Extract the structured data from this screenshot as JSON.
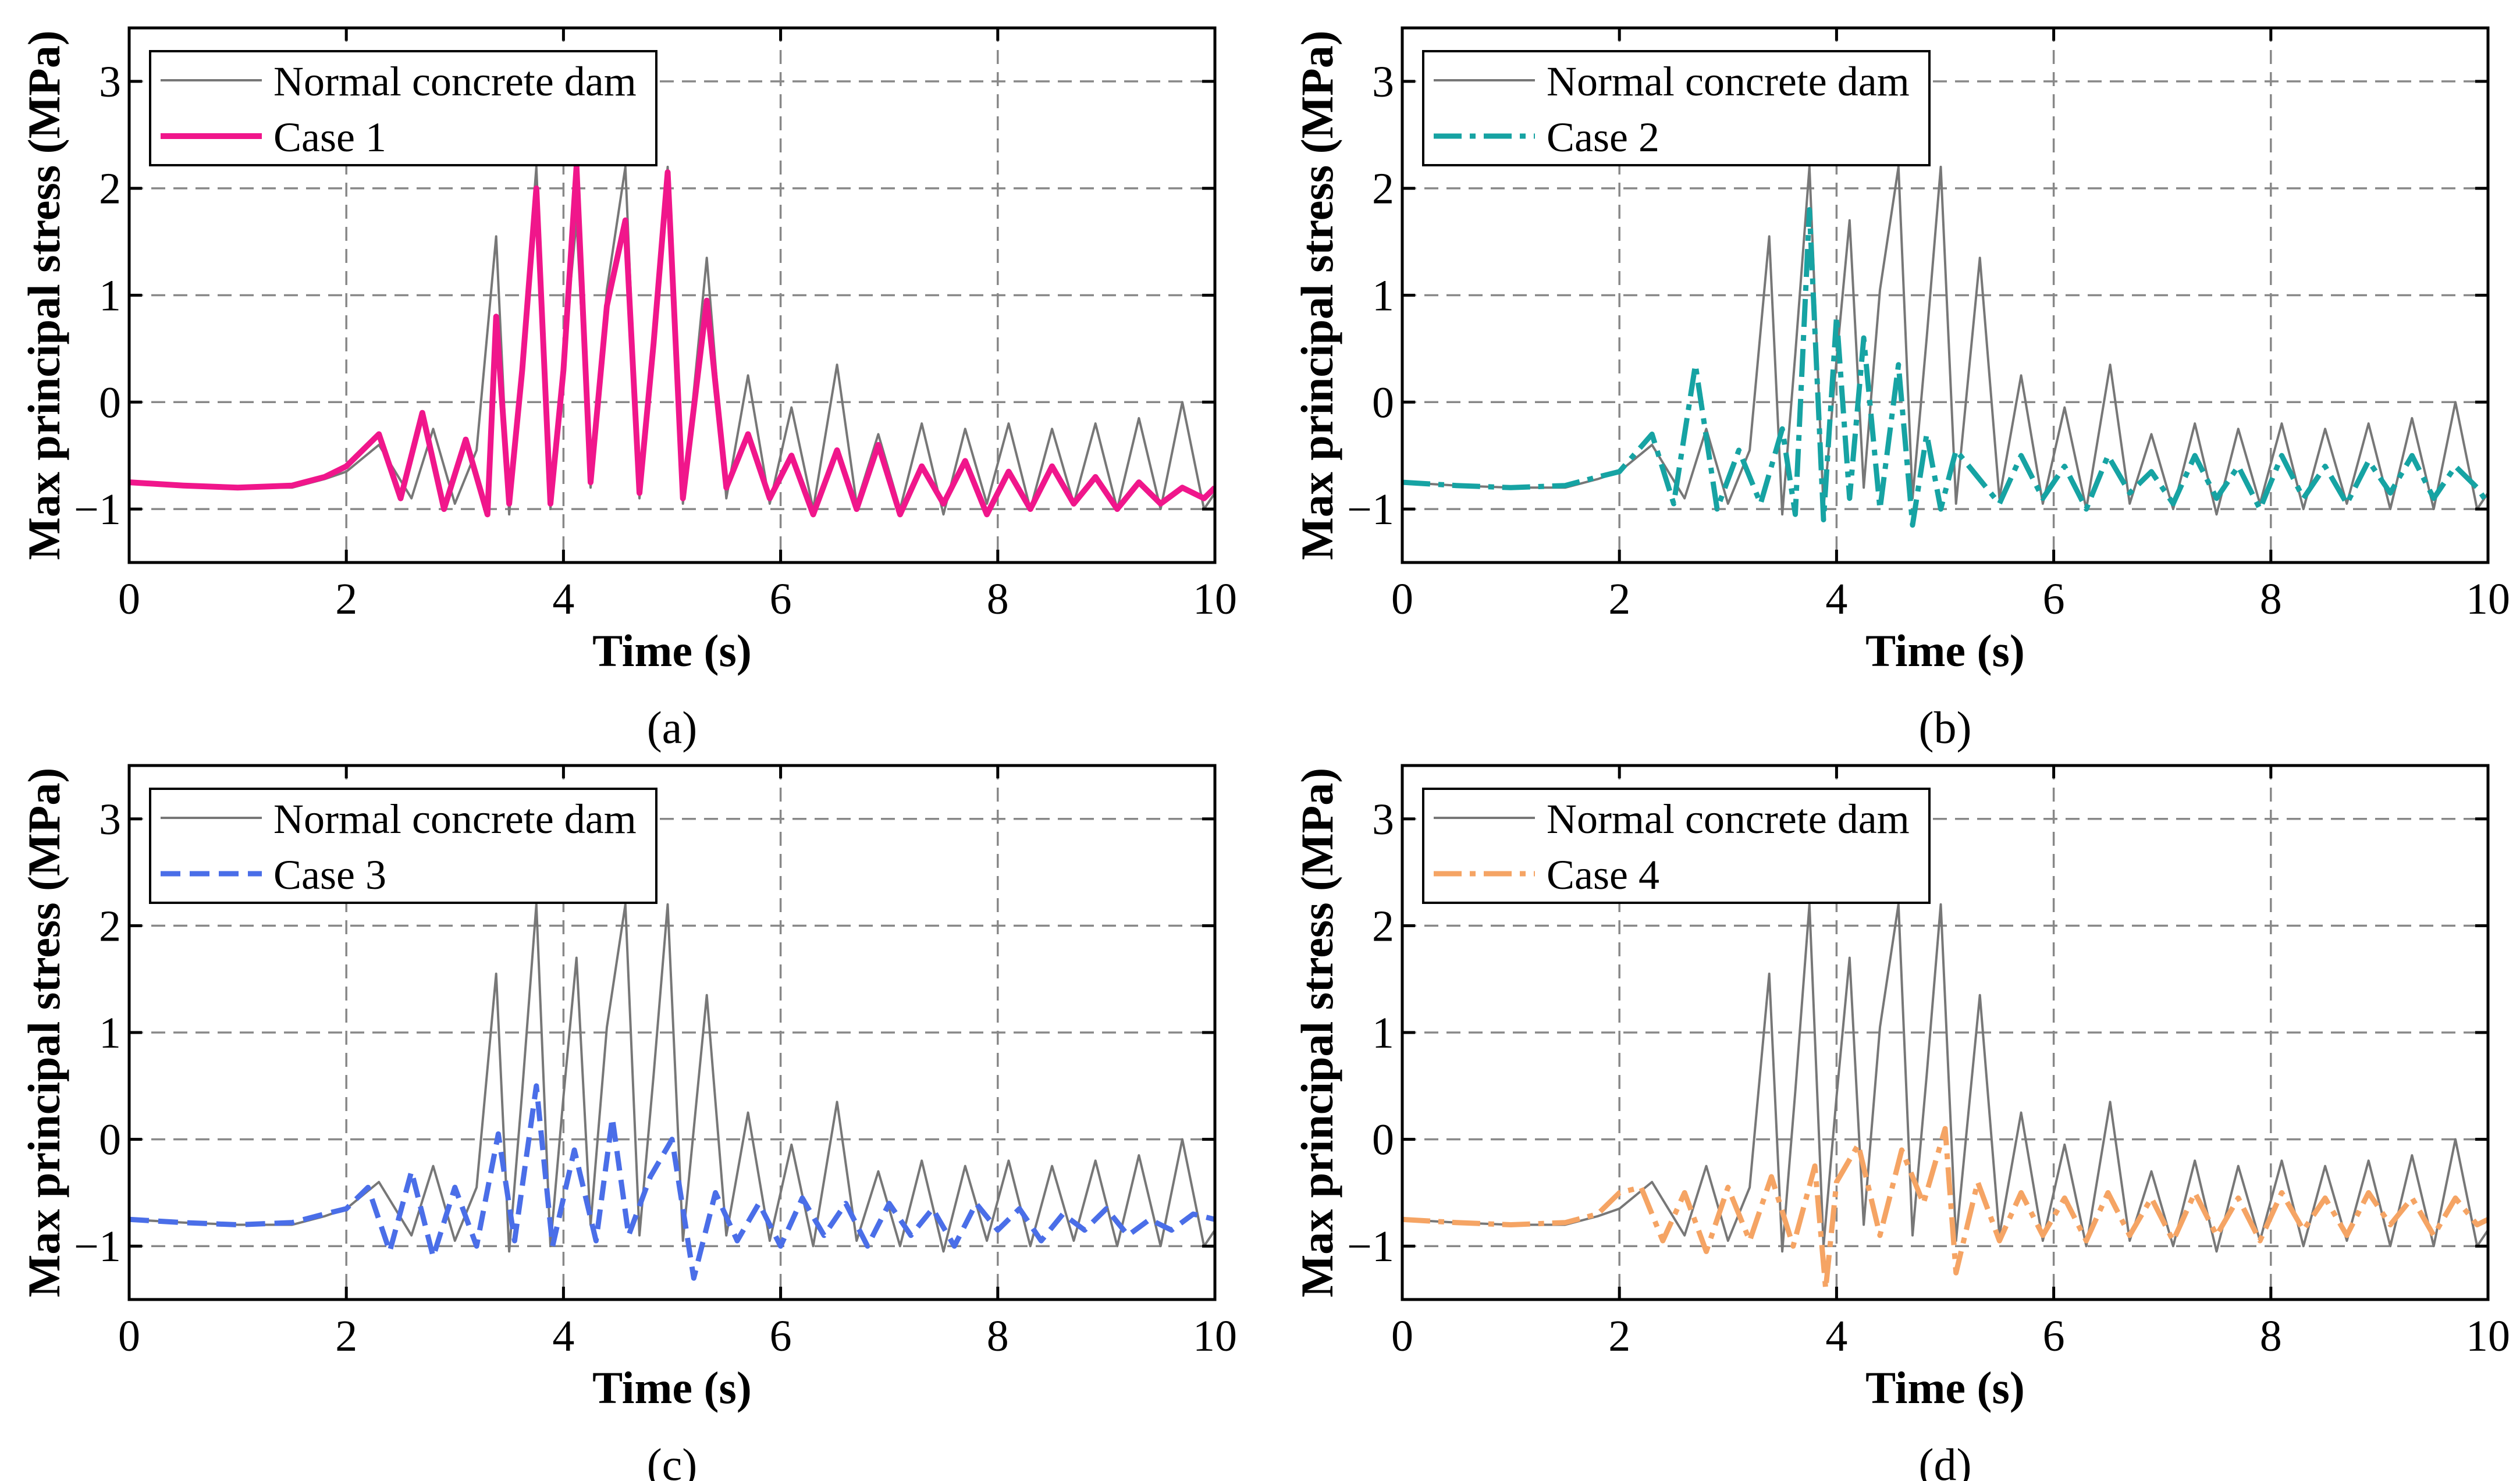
{
  "figure": {
    "panels": [
      "a",
      "b",
      "c",
      "d"
    ]
  },
  "chart_data": [
    {
      "type": "line",
      "panel_label": "(a)",
      "xlabel": "Time (s)",
      "ylabel": "Max principal stress (MPa)",
      "xlim": [
        0,
        10
      ],
      "ylim": [
        -1.5,
        3.5
      ],
      "xticks": [
        "0",
        "2",
        "4",
        "6",
        "8",
        "10"
      ],
      "yticks": [
        "-1",
        "0",
        "1",
        "2",
        "3"
      ],
      "grid": true,
      "legend_position": "top-left",
      "series": [
        {
          "name": "Normal concrete dam",
          "color": "#777777",
          "style": "solid-thin",
          "x": [
            0,
            0.5,
            1.0,
            1.5,
            1.8,
            2.0,
            2.3,
            2.6,
            2.8,
            3.0,
            3.2,
            3.38,
            3.5,
            3.62,
            3.75,
            3.88,
            4.0,
            4.12,
            4.25,
            4.4,
            4.57,
            4.7,
            4.83,
            4.96,
            5.1,
            5.32,
            5.5,
            5.7,
            5.9,
            6.1,
            6.3,
            6.52,
            6.7,
            6.9,
            7.1,
            7.3,
            7.5,
            7.7,
            7.9,
            8.1,
            8.3,
            8.5,
            8.7,
            8.9,
            9.1,
            9.3,
            9.5,
            9.7,
            9.9,
            10.0
          ],
          "y": [
            -0.75,
            -0.78,
            -0.8,
            -0.8,
            -0.72,
            -0.65,
            -0.4,
            -0.9,
            -0.25,
            -0.95,
            -0.45,
            1.55,
            -1.05,
            0.45,
            2.2,
            -1.0,
            0.4,
            1.7,
            -0.8,
            1.05,
            2.2,
            -0.9,
            0.6,
            2.2,
            -0.95,
            1.35,
            -0.9,
            0.25,
            -0.95,
            -0.05,
            -1.0,
            0.35,
            -0.95,
            -0.3,
            -1.0,
            -0.2,
            -1.05,
            -0.25,
            -0.95,
            -0.2,
            -1.0,
            -0.25,
            -0.95,
            -0.2,
            -1.0,
            -0.15,
            -1.0,
            0.0,
            -1.0,
            -0.85
          ]
        },
        {
          "name": "Case 1",
          "color": "#f0168b",
          "style": "solid-thick",
          "x": [
            0,
            0.5,
            1.0,
            1.5,
            1.8,
            2.0,
            2.3,
            2.5,
            2.7,
            2.9,
            3.1,
            3.3,
            3.38,
            3.5,
            3.62,
            3.75,
            3.88,
            4.0,
            4.12,
            4.25,
            4.4,
            4.57,
            4.7,
            4.83,
            4.96,
            5.1,
            5.32,
            5.5,
            5.7,
            5.9,
            6.1,
            6.3,
            6.52,
            6.7,
            6.9,
            7.1,
            7.3,
            7.5,
            7.7,
            7.9,
            8.1,
            8.3,
            8.5,
            8.7,
            8.9,
            9.1,
            9.3,
            9.5,
            9.7,
            9.9,
            10.0
          ],
          "y": [
            -0.75,
            -0.78,
            -0.8,
            -0.78,
            -0.7,
            -0.6,
            -0.3,
            -0.9,
            -0.1,
            -1.0,
            -0.35,
            -1.05,
            0.8,
            -0.95,
            0.3,
            2.0,
            -0.95,
            0.3,
            2.2,
            -0.75,
            0.9,
            1.7,
            -0.85,
            0.55,
            2.15,
            -0.9,
            0.95,
            -0.8,
            -0.3,
            -0.9,
            -0.5,
            -1.05,
            -0.45,
            -1.0,
            -0.4,
            -1.05,
            -0.6,
            -0.95,
            -0.55,
            -1.05,
            -0.65,
            -1.0,
            -0.6,
            -0.95,
            -0.7,
            -1.0,
            -0.75,
            -0.95,
            -0.8,
            -0.9,
            -0.8
          ]
        }
      ]
    },
    {
      "type": "line",
      "panel_label": "(b)",
      "xlabel": "Time (s)",
      "ylabel": "Max principal stress (MPa)",
      "xlim": [
        0,
        10
      ],
      "ylim": [
        -1.5,
        3.5
      ],
      "xticks": [
        "0",
        "2",
        "4",
        "6",
        "8",
        "10"
      ],
      "yticks": [
        "-1",
        "0",
        "1",
        "2",
        "3"
      ],
      "grid": true,
      "legend_position": "top-left",
      "series": [
        {
          "name": "Normal concrete dam",
          "color": "#777777",
          "style": "solid-thin",
          "x": [
            0,
            0.5,
            1.0,
            1.5,
            1.8,
            2.0,
            2.3,
            2.6,
            2.8,
            3.0,
            3.2,
            3.38,
            3.5,
            3.62,
            3.75,
            3.88,
            4.0,
            4.12,
            4.25,
            4.4,
            4.57,
            4.7,
            4.83,
            4.96,
            5.1,
            5.32,
            5.5,
            5.7,
            5.9,
            6.1,
            6.3,
            6.52,
            6.7,
            6.9,
            7.1,
            7.3,
            7.5,
            7.7,
            7.9,
            8.1,
            8.3,
            8.5,
            8.7,
            8.9,
            9.1,
            9.3,
            9.5,
            9.7,
            9.9,
            10.0
          ],
          "y": [
            -0.75,
            -0.78,
            -0.8,
            -0.8,
            -0.72,
            -0.65,
            -0.4,
            -0.9,
            -0.25,
            -0.95,
            -0.45,
            1.55,
            -1.05,
            0.45,
            2.2,
            -1.0,
            0.4,
            1.7,
            -0.8,
            1.05,
            2.2,
            -0.9,
            0.6,
            2.2,
            -0.95,
            1.35,
            -0.9,
            0.25,
            -0.95,
            -0.05,
            -1.0,
            0.35,
            -0.95,
            -0.3,
            -1.0,
            -0.2,
            -1.05,
            -0.25,
            -0.95,
            -0.2,
            -1.0,
            -0.25,
            -0.95,
            -0.2,
            -1.0,
            -0.15,
            -1.0,
            0.0,
            -1.0,
            -0.85
          ]
        },
        {
          "name": "Case 2",
          "color": "#16a3a3",
          "style": "dash-dot",
          "x": [
            0,
            0.5,
            1.0,
            1.5,
            1.8,
            2.0,
            2.3,
            2.5,
            2.7,
            2.9,
            3.1,
            3.3,
            3.5,
            3.62,
            3.75,
            3.88,
            4.0,
            4.12,
            4.25,
            4.4,
            4.57,
            4.7,
            4.83,
            4.96,
            5.1,
            5.3,
            5.5,
            5.7,
            5.9,
            6.1,
            6.3,
            6.5,
            6.7,
            6.9,
            7.1,
            7.3,
            7.5,
            7.7,
            7.9,
            8.1,
            8.3,
            8.5,
            8.7,
            8.9,
            9.1,
            9.3,
            9.5,
            9.7,
            9.9,
            10.0
          ],
          "y": [
            -0.75,
            -0.78,
            -0.8,
            -0.78,
            -0.7,
            -0.65,
            -0.3,
            -0.95,
            0.35,
            -1.0,
            -0.45,
            -0.95,
            -0.25,
            -1.05,
            1.8,
            -1.1,
            0.8,
            -0.9,
            0.6,
            -1.0,
            0.35,
            -1.15,
            -0.3,
            -1.0,
            -0.45,
            -0.7,
            -0.95,
            -0.5,
            -0.9,
            -0.6,
            -1.0,
            -0.5,
            -0.85,
            -0.65,
            -0.95,
            -0.5,
            -0.9,
            -0.6,
            -1.0,
            -0.5,
            -0.9,
            -0.6,
            -0.95,
            -0.55,
            -0.85,
            -0.5,
            -0.9,
            -0.6,
            -0.8,
            -0.95
          ]
        }
      ]
    },
    {
      "type": "line",
      "panel_label": "(c)",
      "xlabel": "Time (s)",
      "ylabel": "Max principal stress (MPa)",
      "xlim": [
        0,
        10
      ],
      "ylim": [
        -1.5,
        3.5
      ],
      "xticks": [
        "0",
        "2",
        "4",
        "6",
        "8",
        "10"
      ],
      "yticks": [
        "-1",
        "0",
        "1",
        "2",
        "3"
      ],
      "grid": true,
      "legend_position": "top-left",
      "series": [
        {
          "name": "Normal concrete dam",
          "color": "#777777",
          "style": "solid-thin",
          "x": [
            0,
            0.5,
            1.0,
            1.5,
            1.8,
            2.0,
            2.3,
            2.6,
            2.8,
            3.0,
            3.2,
            3.38,
            3.5,
            3.62,
            3.75,
            3.88,
            4.0,
            4.12,
            4.25,
            4.4,
            4.57,
            4.7,
            4.83,
            4.96,
            5.1,
            5.32,
            5.5,
            5.7,
            5.9,
            6.1,
            6.3,
            6.52,
            6.7,
            6.9,
            7.1,
            7.3,
            7.5,
            7.7,
            7.9,
            8.1,
            8.3,
            8.5,
            8.7,
            8.9,
            9.1,
            9.3,
            9.5,
            9.7,
            9.9,
            10.0
          ],
          "y": [
            -0.75,
            -0.78,
            -0.8,
            -0.8,
            -0.72,
            -0.65,
            -0.4,
            -0.9,
            -0.25,
            -0.95,
            -0.45,
            1.55,
            -1.05,
            0.45,
            2.2,
            -1.0,
            0.4,
            1.7,
            -0.8,
            1.05,
            2.2,
            -0.9,
            0.6,
            2.2,
            -0.95,
            1.35,
            -0.9,
            0.25,
            -0.95,
            -0.05,
            -1.0,
            0.35,
            -0.95,
            -0.3,
            -1.0,
            -0.2,
            -1.05,
            -0.25,
            -0.95,
            -0.2,
            -1.0,
            -0.25,
            -0.95,
            -0.2,
            -1.0,
            -0.15,
            -1.0,
            0.0,
            -1.0,
            -0.85
          ]
        },
        {
          "name": "Case 3",
          "color": "#4a6ee8",
          "style": "dashed",
          "x": [
            0,
            0.5,
            1.0,
            1.5,
            1.8,
            2.0,
            2.2,
            2.4,
            2.6,
            2.8,
            3.0,
            3.2,
            3.4,
            3.55,
            3.75,
            3.9,
            4.1,
            4.3,
            4.45,
            4.6,
            4.8,
            5.0,
            5.2,
            5.4,
            5.6,
            5.8,
            6.0,
            6.2,
            6.4,
            6.6,
            6.8,
            7.0,
            7.2,
            7.4,
            7.6,
            7.8,
            8.0,
            8.2,
            8.4,
            8.6,
            8.8,
            9.0,
            9.2,
            9.4,
            9.6,
            9.8,
            10.0
          ],
          "y": [
            -0.75,
            -0.78,
            -0.8,
            -0.78,
            -0.7,
            -0.65,
            -0.45,
            -1.05,
            -0.3,
            -1.1,
            -0.45,
            -1.0,
            0.05,
            -0.95,
            0.5,
            -1.0,
            -0.1,
            -0.95,
            0.2,
            -0.9,
            -0.35,
            0.0,
            -1.3,
            -0.5,
            -0.95,
            -0.6,
            -1.0,
            -0.55,
            -0.9,
            -0.6,
            -1.0,
            -0.6,
            -0.9,
            -0.65,
            -1.0,
            -0.6,
            -0.85,
            -0.65,
            -0.95,
            -0.7,
            -0.85,
            -0.65,
            -0.9,
            -0.75,
            -0.85,
            -0.7,
            -0.75
          ]
        }
      ]
    },
    {
      "type": "line",
      "panel_label": "(d)",
      "xlabel": "Time (s)",
      "ylabel": "Max principal stress (MPa)",
      "xlim": [
        0,
        10
      ],
      "ylim": [
        -1.5,
        3.5
      ],
      "xticks": [
        "0",
        "2",
        "4",
        "6",
        "8",
        "10"
      ],
      "yticks": [
        "-1",
        "0",
        "1",
        "2",
        "3"
      ],
      "grid": true,
      "legend_position": "top-left",
      "series": [
        {
          "name": "Normal concrete dam",
          "color": "#777777",
          "style": "solid-thin",
          "x": [
            0,
            0.5,
            1.0,
            1.5,
            1.8,
            2.0,
            2.3,
            2.6,
            2.8,
            3.0,
            3.2,
            3.38,
            3.5,
            3.62,
            3.75,
            3.88,
            4.0,
            4.12,
            4.25,
            4.4,
            4.57,
            4.7,
            4.83,
            4.96,
            5.1,
            5.32,
            5.5,
            5.7,
            5.9,
            6.1,
            6.3,
            6.52,
            6.7,
            6.9,
            7.1,
            7.3,
            7.5,
            7.7,
            7.9,
            8.1,
            8.3,
            8.5,
            8.7,
            8.9,
            9.1,
            9.3,
            9.5,
            9.7,
            9.9,
            10.0
          ],
          "y": [
            -0.75,
            -0.78,
            -0.8,
            -0.8,
            -0.72,
            -0.65,
            -0.4,
            -0.9,
            -0.25,
            -0.95,
            -0.45,
            1.55,
            -1.05,
            0.45,
            2.2,
            -1.0,
            0.4,
            1.7,
            -0.8,
            1.05,
            2.2,
            -0.9,
            0.6,
            2.2,
            -0.95,
            1.35,
            -0.9,
            0.25,
            -0.95,
            -0.05,
            -1.0,
            0.35,
            -0.95,
            -0.3,
            -1.0,
            -0.2,
            -1.05,
            -0.25,
            -0.95,
            -0.2,
            -1.0,
            -0.25,
            -0.95,
            -0.2,
            -1.0,
            -0.15,
            -1.0,
            0.0,
            -1.0,
            -0.85
          ]
        },
        {
          "name": "Case 4",
          "color": "#f5a464",
          "style": "dash-dot",
          "x": [
            0,
            0.5,
            1.0,
            1.5,
            1.8,
            2.0,
            2.2,
            2.4,
            2.6,
            2.8,
            3.0,
            3.2,
            3.4,
            3.6,
            3.8,
            3.9,
            4.0,
            4.2,
            4.4,
            4.6,
            4.8,
            5.0,
            5.1,
            5.3,
            5.5,
            5.7,
            5.9,
            6.1,
            6.3,
            6.5,
            6.7,
            6.9,
            7.1,
            7.3,
            7.5,
            7.7,
            7.9,
            8.1,
            8.3,
            8.5,
            8.7,
            8.9,
            9.1,
            9.3,
            9.5,
            9.7,
            9.9,
            10.0
          ],
          "y": [
            -0.75,
            -0.78,
            -0.8,
            -0.78,
            -0.7,
            -0.5,
            -0.45,
            -0.95,
            -0.5,
            -1.05,
            -0.45,
            -0.95,
            -0.35,
            -1.0,
            -0.25,
            -1.4,
            -0.4,
            -0.05,
            -0.9,
            -0.1,
            -0.6,
            0.1,
            -1.25,
            -0.4,
            -0.95,
            -0.5,
            -0.9,
            -0.55,
            -0.95,
            -0.5,
            -0.9,
            -0.55,
            -0.95,
            -0.5,
            -0.9,
            -0.55,
            -0.95,
            -0.5,
            -0.85,
            -0.55,
            -0.9,
            -0.5,
            -0.8,
            -0.55,
            -0.9,
            -0.55,
            -0.8,
            -0.75
          ]
        }
      ]
    }
  ]
}
